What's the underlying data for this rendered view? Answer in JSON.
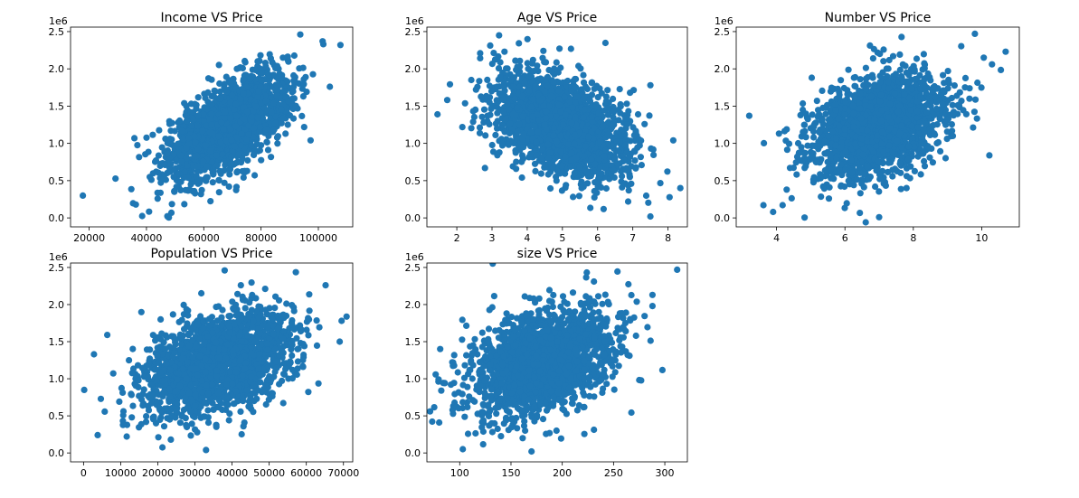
{
  "figure": {
    "marker_color": "#1f77b4",
    "background": "#ffffff"
  },
  "chart_data": [
    {
      "type": "scatter",
      "title": "Income VS Price",
      "xlabel": "",
      "ylabel": "",
      "xlim": [
        13500,
        112000
      ],
      "ylim": [
        -120000,
        2560000
      ],
      "x_ticks": [
        20000,
        40000,
        60000,
        80000,
        100000
      ],
      "y_ticks": [
        0.0,
        0.5,
        1.0,
        1.5,
        2.0,
        2.5
      ],
      "y_offset_text": "1e6",
      "grid": false,
      "cloud": {
        "cx": 68500,
        "cy": 1230000,
        "sx": 10600,
        "sy": 355000,
        "corr": 0.64,
        "n": 1900
      },
      "outliers": [
        {
          "x": 17800,
          "y": 300000
        },
        {
          "x": 35800,
          "y": 1070000
        },
        {
          "x": 36300,
          "y": 180000
        },
        {
          "x": 38500,
          "y": 25000
        },
        {
          "x": 47500,
          "y": 15000
        },
        {
          "x": 93700,
          "y": 2460000
        },
        {
          "x": 101500,
          "y": 2370000
        },
        {
          "x": 104000,
          "y": 1760000
        },
        {
          "x": 107700,
          "y": 2320000
        },
        {
          "x": 97300,
          "y": 1040000
        }
      ]
    },
    {
      "type": "scatter",
      "title": "Age VS Price",
      "xlabel": "",
      "ylabel": "",
      "xlim": [
        1.15,
        8.55
      ],
      "ylim": [
        -120000,
        2560000
      ],
      "x_ticks": [
        2,
        3,
        4,
        5,
        6,
        7,
        8
      ],
      "y_ticks": [
        0.0,
        0.5,
        1.0,
        1.5,
        2.0,
        2.5
      ],
      "y_offset_text": "1e6",
      "grid": false,
      "cloud": {
        "cx": 5.0,
        "cy": 1230000,
        "sx": 0.95,
        "sy": 355000,
        "corr": -0.45,
        "n": 1900
      },
      "outliers": [
        {
          "x": 1.45,
          "y": 1390000
        },
        {
          "x": 3.2,
          "y": 2450000
        },
        {
          "x": 7.5,
          "y": 1780000
        },
        {
          "x": 7.5,
          "y": 20000
        },
        {
          "x": 8.35,
          "y": 400000
        },
        {
          "x": 8.15,
          "y": 1040000
        },
        {
          "x": 2.8,
          "y": 670000
        }
      ]
    },
    {
      "type": "scatter",
      "title": "Number VS Price",
      "xlabel": "",
      "ylabel": "",
      "xlim": [
        2.82,
        11.1
      ],
      "ylim": [
        -120000,
        2560000
      ],
      "x_ticks": [
        4,
        6,
        8,
        10
      ],
      "y_ticks": [
        0.0,
        0.5,
        1.0,
        1.5,
        2.0,
        2.5
      ],
      "y_offset_text": "1e6",
      "grid": false,
      "cloud": {
        "cx": 7.0,
        "cy": 1230000,
        "sx": 1.0,
        "sy": 355000,
        "corr": 0.35,
        "n": 1900
      },
      "outliers": [
        {
          "x": 3.2,
          "y": 1370000
        },
        {
          "x": 3.9,
          "y": 80000
        },
        {
          "x": 7.0,
          "y": 10000
        },
        {
          "x": 9.8,
          "y": 2470000
        },
        {
          "x": 10.7,
          "y": 2230000
        },
        {
          "x": 10.3,
          "y": 2060000
        }
      ]
    },
    {
      "type": "scatter",
      "title": "Population VS Price",
      "xlabel": "",
      "ylabel": "",
      "xlim": [
        -3500,
        72500
      ],
      "ylim": [
        -120000,
        2560000
      ],
      "x_ticks": [
        0,
        10000,
        20000,
        30000,
        40000,
        50000,
        60000,
        70000
      ],
      "y_ticks": [
        0.0,
        0.5,
        1.0,
        1.5,
        2.0,
        2.5
      ],
      "y_offset_text": "1e6",
      "grid": false,
      "cloud": {
        "cx": 36200,
        "cy": 1230000,
        "sx": 9900,
        "sy": 355000,
        "corr": 0.41,
        "n": 1900
      },
      "outliers": [
        {
          "x": 170,
          "y": 850000
        },
        {
          "x": 2800,
          "y": 1330000
        },
        {
          "x": 3800,
          "y": 240000
        },
        {
          "x": 6400,
          "y": 1590000
        },
        {
          "x": 69500,
          "y": 1780000
        },
        {
          "x": 69000,
          "y": 1500000
        },
        {
          "x": 38000,
          "y": 2460000
        },
        {
          "x": 33000,
          "y": 40000
        }
      ]
    },
    {
      "type": "scatter",
      "title": "size VS Price",
      "xlabel": "",
      "ylabel": "",
      "xlim": [
        68,
        322
      ],
      "ylim": [
        -120000,
        2560000
      ],
      "x_ticks": [
        100,
        150,
        200,
        250,
        300
      ],
      "y_ticks": [
        0.0,
        0.5,
        1.0,
        1.5,
        2.0,
        2.5
      ],
      "y_offset_text": "1e6",
      "grid": false,
      "cloud": {
        "cx": 180,
        "cy": 1230000,
        "sx": 35,
        "sy": 355000,
        "corr": 0.34,
        "n": 1900
      },
      "outliers": [
        {
          "x": 312,
          "y": 2470000
        },
        {
          "x": 80,
          "y": 410000
        },
        {
          "x": 81,
          "y": 1400000
        },
        {
          "x": 103,
          "y": 50000
        },
        {
          "x": 288,
          "y": 2130000
        },
        {
          "x": 170,
          "y": 20000
        },
        {
          "x": 288,
          "y": 1980000
        }
      ]
    }
  ]
}
